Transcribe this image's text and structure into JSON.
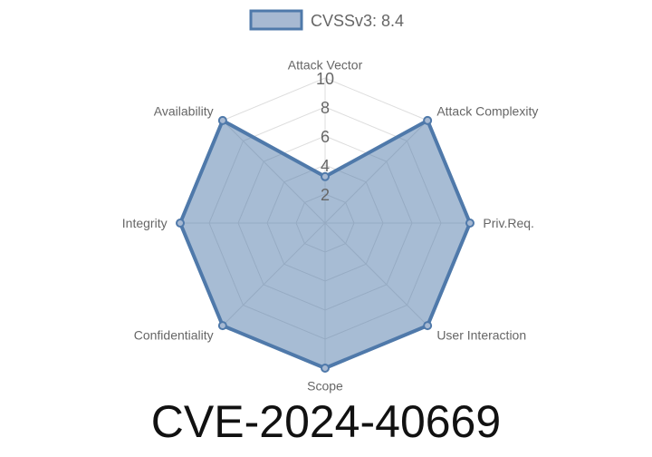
{
  "chart_data": {
    "type": "radar",
    "title": "CVE-2024-40669",
    "legend": {
      "position": "top",
      "entries": [
        "CVSSv3: 8.4"
      ]
    },
    "axes": [
      "Attack Vector",
      "Attack Complexity",
      "Priv.Req.",
      "User Interaction",
      "Scope",
      "Confidentiality",
      "Integrity",
      "Availability"
    ],
    "ticks": [
      "2",
      "4",
      "6",
      "8",
      "10"
    ],
    "range": [
      0,
      10
    ],
    "series": [
      {
        "name": "CVSSv3: 8.4",
        "values": [
          3.2,
          10,
          10,
          10,
          10,
          10,
          10,
          10
        ]
      }
    ],
    "colors": {
      "stroke": "#4f79aa",
      "fill": "rgba(79,121,170,0.5)",
      "grid": "#dddddd"
    }
  }
}
